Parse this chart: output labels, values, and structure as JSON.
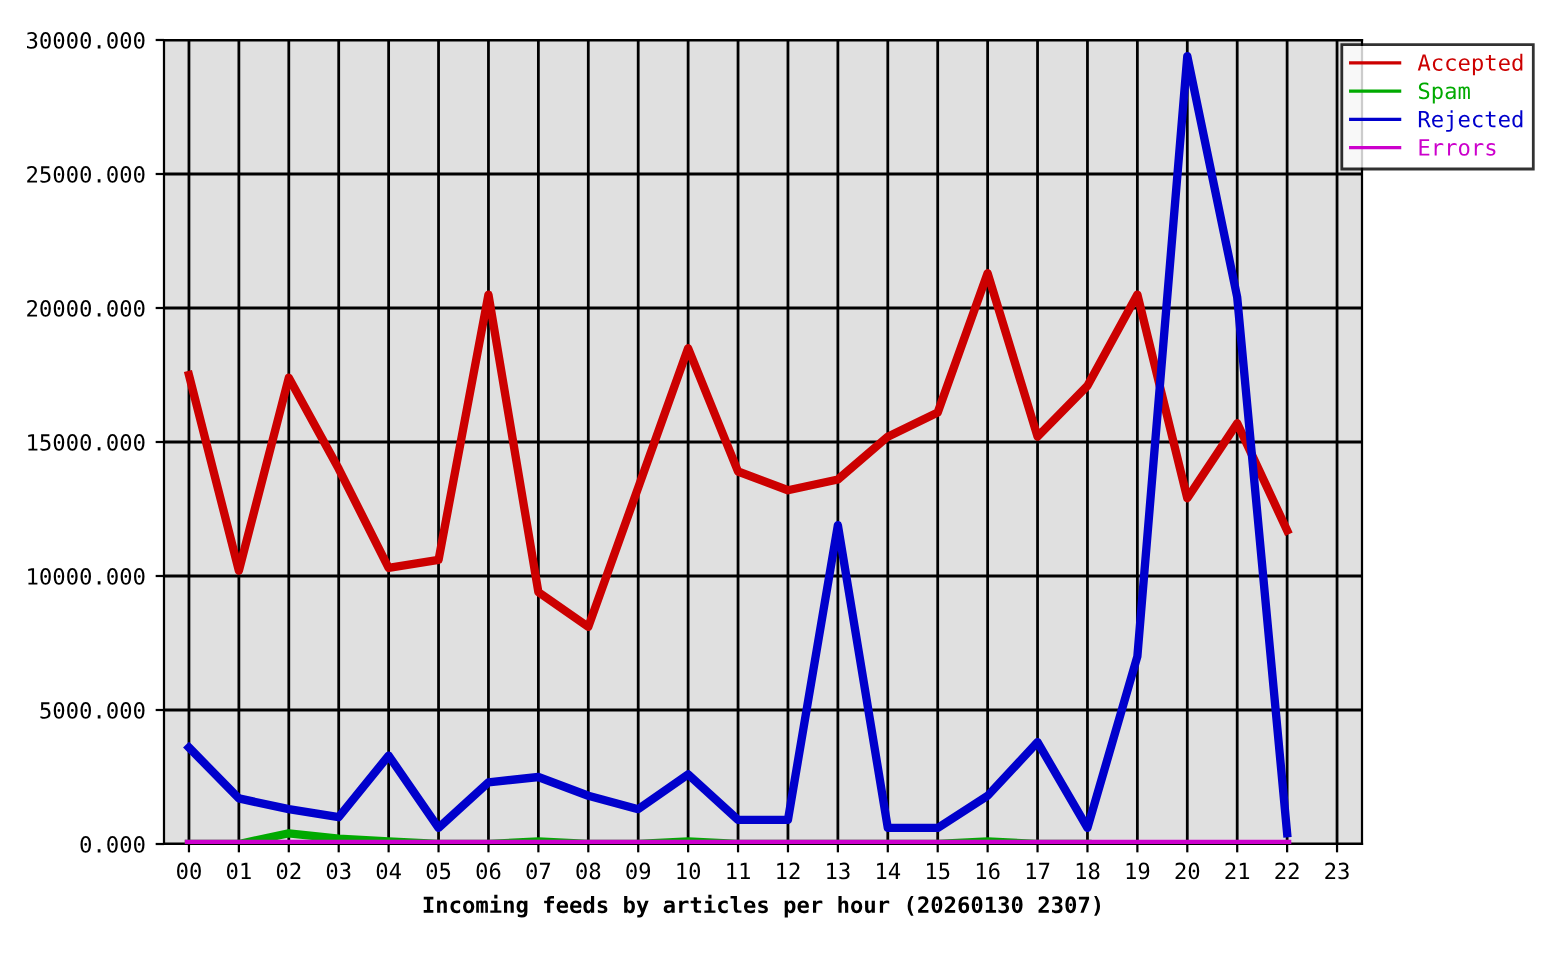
{
  "chart_data": {
    "type": "line",
    "xlabel": "Incoming feeds by articles per hour (20260130 2307)",
    "categories": [
      "00",
      "01",
      "02",
      "03",
      "04",
      "05",
      "06",
      "07",
      "08",
      "09",
      "10",
      "11",
      "12",
      "13",
      "14",
      "15",
      "16",
      "17",
      "18",
      "19",
      "20",
      "21",
      "22",
      "23"
    ],
    "series": [
      {
        "name": "Accepted",
        "color": "#cc0000",
        "values": [
          17500,
          10200,
          17400,
          14000,
          10300,
          10600,
          20500,
          9400,
          8100,
          13300,
          18500,
          13900,
          13200,
          13600,
          15200,
          16100,
          21300,
          15200,
          17100,
          20500,
          12900,
          15700,
          11700,
          null
        ]
      },
      {
        "name": "Spam",
        "color": "#00aa00",
        "values": [
          0,
          0,
          400,
          200,
          100,
          0,
          0,
          100,
          0,
          0,
          100,
          0,
          0,
          0,
          0,
          0,
          100,
          0,
          0,
          null,
          null,
          null,
          null,
          null
        ]
      },
      {
        "name": "Rejected",
        "color": "#0000cc",
        "values": [
          3600,
          1700,
          1300,
          1000,
          3300,
          600,
          2300,
          2500,
          1800,
          1300,
          2600,
          900,
          900,
          11900,
          600,
          600,
          1800,
          3800,
          600,
          7000,
          29400,
          20400,
          400,
          null
        ]
      },
      {
        "name": "Errors",
        "color": "#cc00cc",
        "values": [
          0,
          0,
          0,
          0,
          0,
          0,
          0,
          0,
          0,
          0,
          0,
          0,
          0,
          0,
          0,
          0,
          0,
          0,
          0,
          0,
          0,
          0,
          0,
          null
        ]
      }
    ],
    "ylim": [
      0,
      30000
    ],
    "yticks": [
      {
        "value": 0,
        "label": "0.000"
      },
      {
        "value": 5000,
        "label": "5000.000"
      },
      {
        "value": 10000,
        "label": "10000.000"
      },
      {
        "value": 15000,
        "label": "15000.000"
      },
      {
        "value": 20000,
        "label": "20000.000"
      },
      {
        "value": 25000,
        "label": "25000.000"
      },
      {
        "value": 30000,
        "label": "30000.000"
      }
    ],
    "grid": true,
    "legend": "top right",
    "line_style": "solid"
  }
}
